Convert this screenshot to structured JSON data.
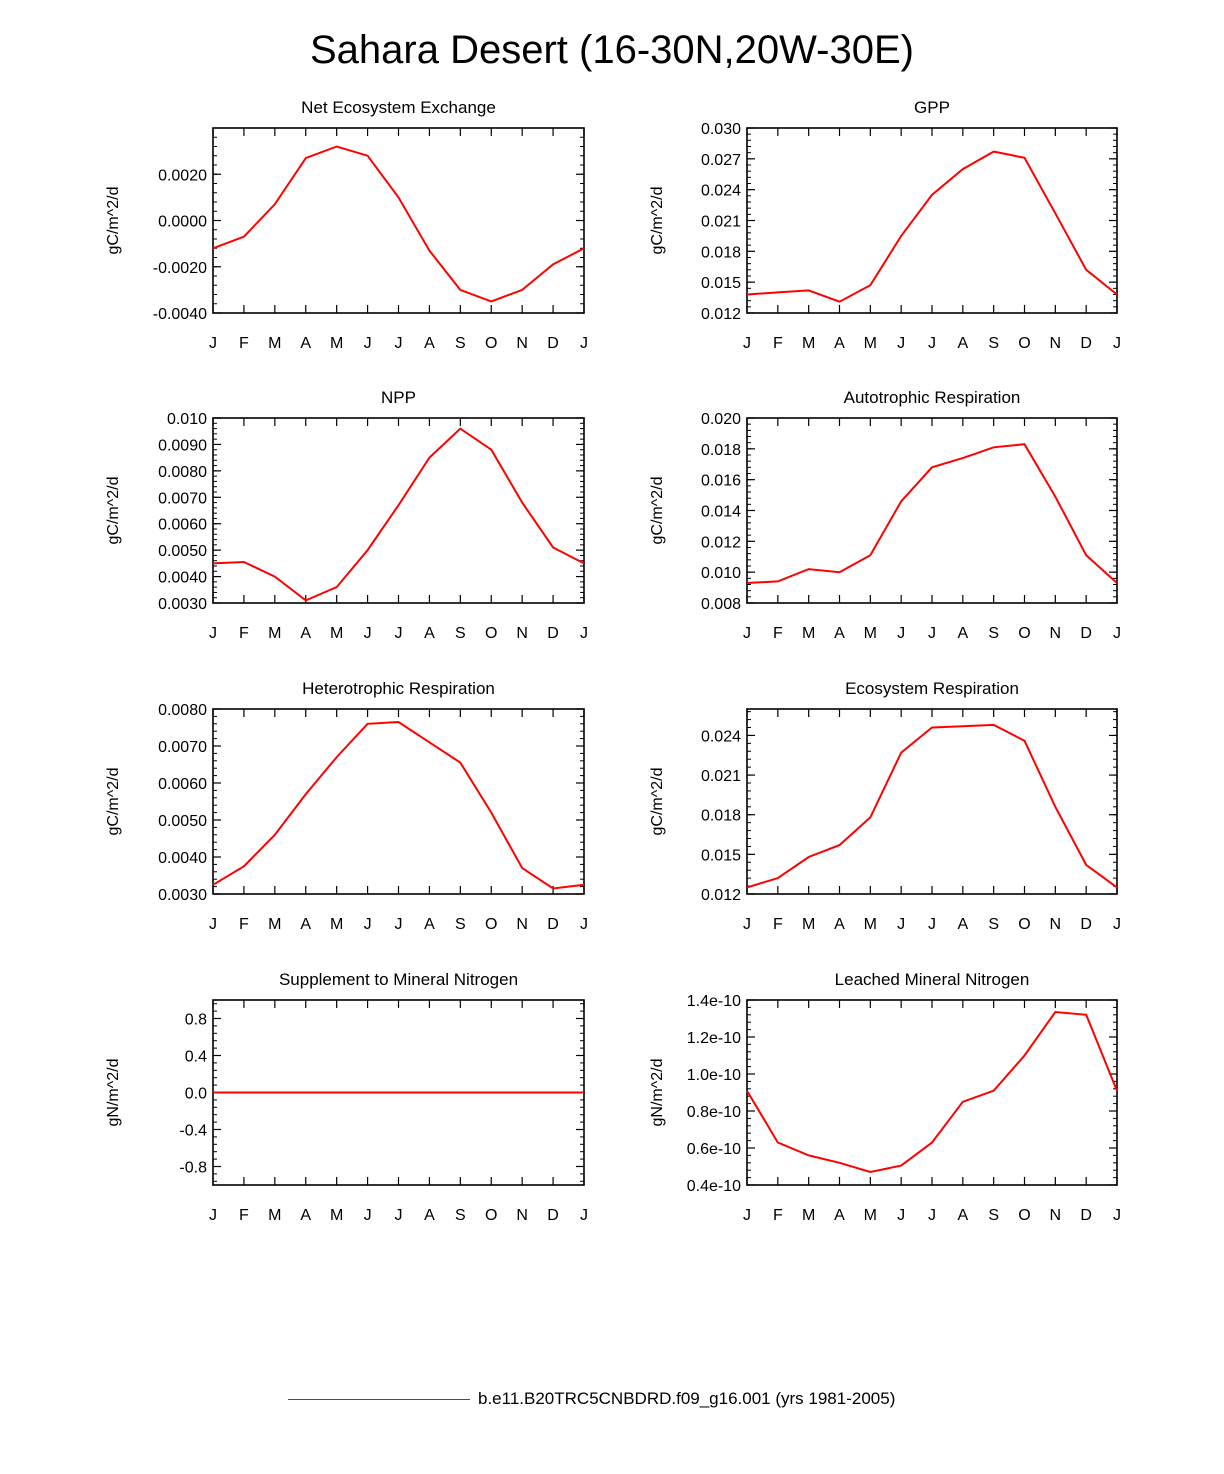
{
  "title": "Sahara Desert (16-30N,20W-30E)",
  "legend": {
    "label": "b.e11.B20TRC5CNBDRD.f09_g16.001 (yrs 1981-2005)",
    "color": "#ff0000"
  },
  "line_color": "#ff0000",
  "chart_data": [
    {
      "type": "line",
      "title": "Net Ecosystem Exchange",
      "ylabel": "gC/m^2/d",
      "categories": [
        "J",
        "F",
        "M",
        "A",
        "M",
        "J",
        "J",
        "A",
        "S",
        "O",
        "N",
        "D",
        "J"
      ],
      "ylim": [
        -0.004,
        0.004
      ],
      "yticks": [
        -0.004,
        -0.002,
        0.0,
        0.002
      ],
      "ytick_labels": [
        "-0.0040",
        "-0.0020",
        "0.0000",
        "0.0020"
      ],
      "values": [
        -0.0012,
        -0.0007,
        0.0007,
        0.0027,
        0.0032,
        0.0028,
        0.001,
        -0.0013,
        -0.003,
        -0.0035,
        -0.003,
        -0.0019,
        -0.0012
      ]
    },
    {
      "type": "line",
      "title": "GPP",
      "ylabel": "gC/m^2/d",
      "categories": [
        "J",
        "F",
        "M",
        "A",
        "M",
        "J",
        "J",
        "A",
        "S",
        "O",
        "N",
        "D",
        "J"
      ],
      "ylim": [
        0.012,
        0.03
      ],
      "yticks": [
        0.012,
        0.015,
        0.018,
        0.021,
        0.024,
        0.027,
        0.03
      ],
      "ytick_labels": [
        "0.012",
        "0.015",
        "0.018",
        "0.021",
        "0.024",
        "0.027",
        "0.030"
      ],
      "values": [
        0.0138,
        0.014,
        0.0142,
        0.0131,
        0.0147,
        0.0195,
        0.0235,
        0.026,
        0.0277,
        0.0271,
        0.0217,
        0.0162,
        0.0138
      ]
    },
    {
      "type": "line",
      "title": "NPP",
      "ylabel": "gC/m^2/d",
      "categories": [
        "J",
        "F",
        "M",
        "A",
        "M",
        "J",
        "J",
        "A",
        "S",
        "O",
        "N",
        "D",
        "J"
      ],
      "ylim": [
        0.003,
        0.01
      ],
      "yticks": [
        0.003,
        0.004,
        0.005,
        0.006,
        0.007,
        0.008,
        0.009,
        0.01
      ],
      "ytick_labels": [
        "0.0030",
        "0.0040",
        "0.0050",
        "0.0060",
        "0.0070",
        "0.0080",
        "0.0090",
        "0.010"
      ],
      "values": [
        0.0045,
        0.00455,
        0.004,
        0.0031,
        0.0036,
        0.005,
        0.0067,
        0.0085,
        0.0096,
        0.0088,
        0.0068,
        0.0051,
        0.0045
      ]
    },
    {
      "type": "line",
      "title": "Autotrophic Respiration",
      "ylabel": "gC/m^2/d",
      "categories": [
        "J",
        "F",
        "M",
        "A",
        "M",
        "J",
        "J",
        "A",
        "S",
        "O",
        "N",
        "D",
        "J"
      ],
      "ylim": [
        0.008,
        0.02
      ],
      "yticks": [
        0.008,
        0.01,
        0.012,
        0.014,
        0.016,
        0.018,
        0.02
      ],
      "ytick_labels": [
        "0.008",
        "0.010",
        "0.012",
        "0.014",
        "0.016",
        "0.018",
        "0.020"
      ],
      "values": [
        0.0093,
        0.0094,
        0.0102,
        0.01,
        0.0111,
        0.0146,
        0.0168,
        0.0174,
        0.0181,
        0.0183,
        0.0149,
        0.0111,
        0.0093
      ]
    },
    {
      "type": "line",
      "title": "Heterotrophic Respiration",
      "ylabel": "gC/m^2/d",
      "categories": [
        "J",
        "F",
        "M",
        "A",
        "M",
        "J",
        "J",
        "A",
        "S",
        "O",
        "N",
        "D",
        "J"
      ],
      "ylim": [
        0.003,
        0.008
      ],
      "yticks": [
        0.003,
        0.004,
        0.005,
        0.006,
        0.007,
        0.008
      ],
      "ytick_labels": [
        "0.0030",
        "0.0040",
        "0.0050",
        "0.0060",
        "0.0070",
        "0.0080"
      ],
      "values": [
        0.00325,
        0.00375,
        0.0046,
        0.0057,
        0.0067,
        0.0076,
        0.00765,
        0.0071,
        0.00655,
        0.0052,
        0.0037,
        0.00315,
        0.00325
      ]
    },
    {
      "type": "line",
      "title": "Ecosystem Respiration",
      "ylabel": "gC/m^2/d",
      "categories": [
        "J",
        "F",
        "M",
        "A",
        "M",
        "J",
        "J",
        "A",
        "S",
        "O",
        "N",
        "D",
        "J"
      ],
      "ylim": [
        0.012,
        0.026
      ],
      "yticks": [
        0.012,
        0.015,
        0.018,
        0.021,
        0.024
      ],
      "ytick_labels": [
        "0.012",
        "0.015",
        "0.018",
        "0.021",
        "0.024"
      ],
      "values": [
        0.0125,
        0.0132,
        0.0148,
        0.0157,
        0.0178,
        0.0227,
        0.0246,
        0.0247,
        0.0248,
        0.0236,
        0.0186,
        0.0142,
        0.0125
      ]
    },
    {
      "type": "line",
      "title": "Supplement to Mineral Nitrogen",
      "ylabel": "gN/m^2/d",
      "categories": [
        "J",
        "F",
        "M",
        "A",
        "M",
        "J",
        "J",
        "A",
        "S",
        "O",
        "N",
        "D",
        "J"
      ],
      "ylim": [
        -1.0,
        1.0
      ],
      "yticks": [
        -0.8,
        -0.4,
        0.0,
        0.4,
        0.8
      ],
      "ytick_labels": [
        "-0.8",
        "-0.4",
        "0.0",
        "0.4",
        "0.8"
      ],
      "values": [
        0,
        0,
        0,
        0,
        0,
        0,
        0,
        0,
        0,
        0,
        0,
        0,
        0
      ]
    },
    {
      "type": "line",
      "title": "Leached Mineral Nitrogen",
      "ylabel": "gN/m^2/d",
      "categories": [
        "J",
        "F",
        "M",
        "A",
        "M",
        "J",
        "J",
        "A",
        "S",
        "O",
        "N",
        "D",
        "J"
      ],
      "ylim": [
        4e-11,
        1.4e-10
      ],
      "yticks": [
        4e-11,
        6e-11,
        8e-11,
        1e-10,
        1.2e-10,
        1.4e-10
      ],
      "ytick_labels": [
        "0.4e-10",
        "0.6e-10",
        "0.8e-10",
        "1.0e-10",
        "1.2e-10",
        "1.4e-10"
      ],
      "values": [
        9.1e-11,
        6.3e-11,
        5.6e-11,
        5.2e-11,
        4.7e-11,
        5.05e-11,
        6.3e-11,
        8.5e-11,
        9.1e-11,
        1.1e-10,
        1.335e-10,
        1.32e-10,
        9.1e-11
      ]
    }
  ]
}
